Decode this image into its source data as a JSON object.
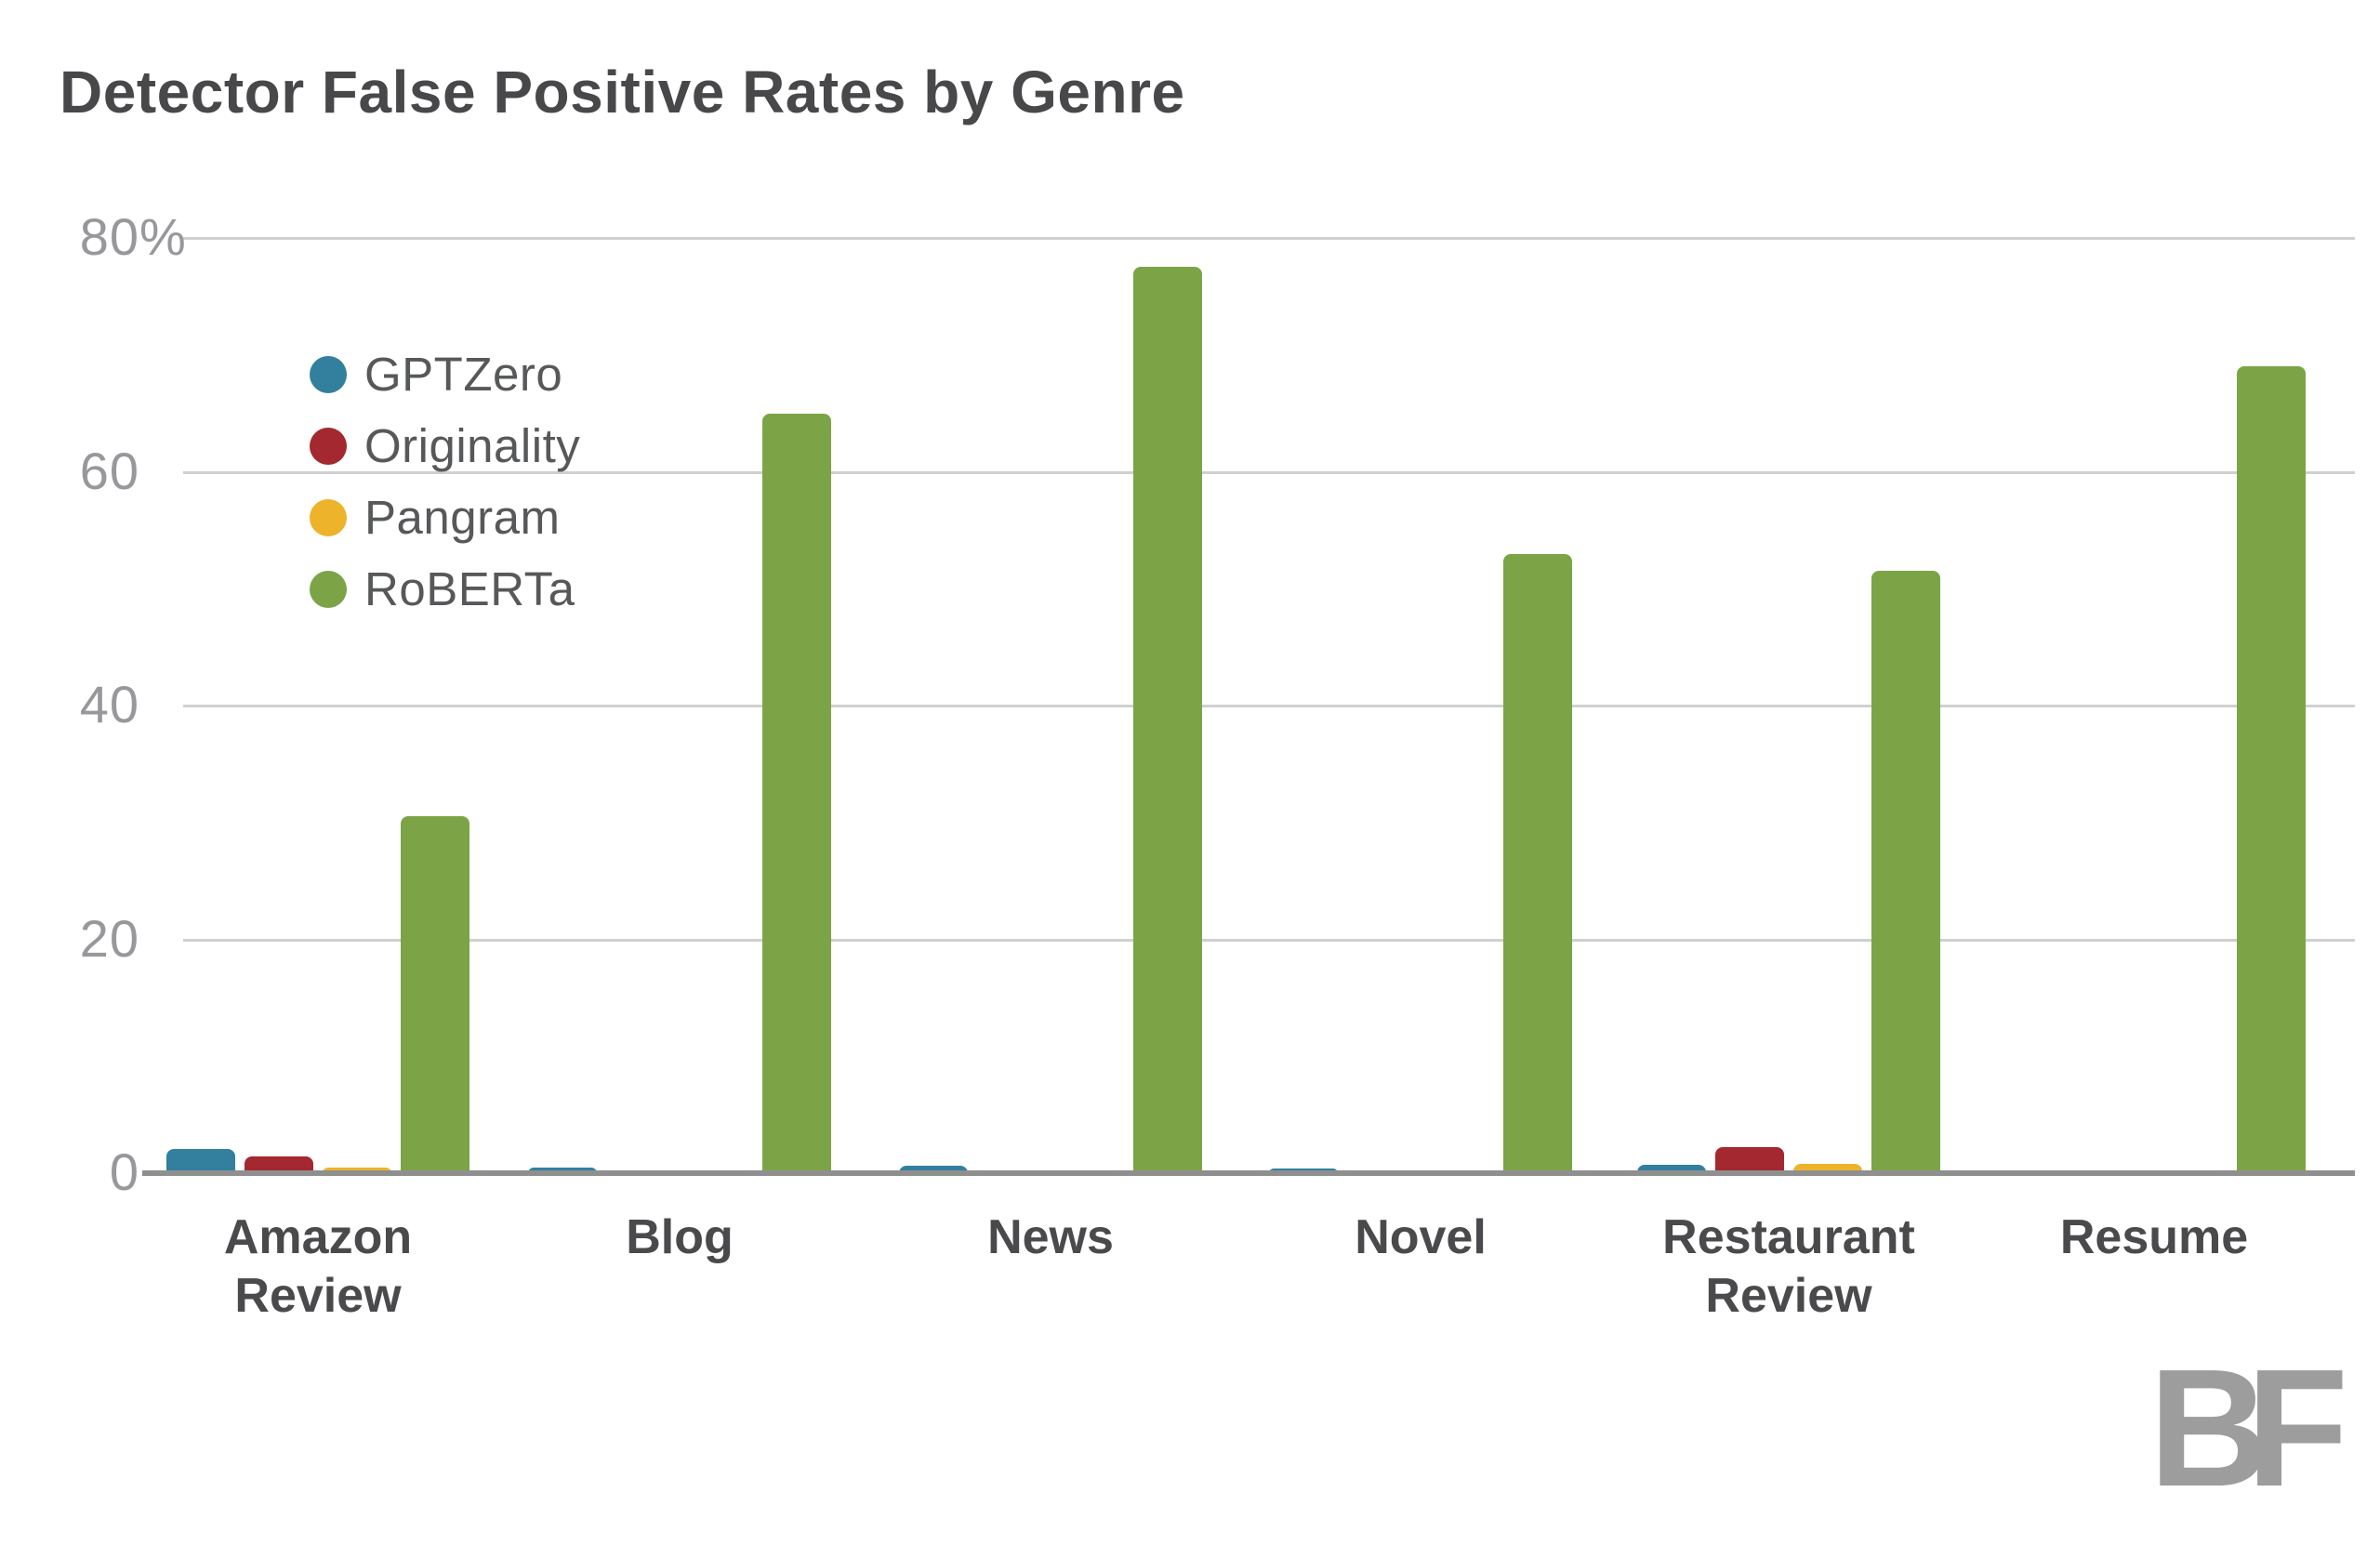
{
  "title": "Detector False Positive Rates by Genre",
  "chart_data": {
    "type": "bar",
    "title": "Detector False Positive Rates by Genre",
    "categories": [
      "Amazon\nReview",
      "Blog",
      "News",
      "Novel",
      "Restaurant\nReview",
      "Resume"
    ],
    "series": [
      {
        "name": "GPTZero",
        "color": "#32809e",
        "values": [
          2.1,
          0.5,
          0.65,
          0.4,
          0.7,
          0
        ]
      },
      {
        "name": "Originality",
        "color": "#a4282f",
        "values": [
          1.4,
          0,
          0,
          0,
          2.2,
          0
        ]
      },
      {
        "name": "Pangram",
        "color": "#edb32b",
        "values": [
          0.5,
          0,
          0,
          0,
          0.8,
          0
        ]
      },
      {
        "name": "RoBERTa",
        "color": "#7ca446",
        "values": [
          30.5,
          65,
          77.5,
          53,
          51.5,
          69
        ]
      }
    ],
    "xlabel": "",
    "ylabel": "",
    "ylim": [
      0,
      80
    ],
    "yticks": [
      {
        "value": 80,
        "label": "80",
        "suffix": "%"
      },
      {
        "value": 60,
        "label": "60",
        "suffix": ""
      },
      {
        "value": 40,
        "label": "40",
        "suffix": ""
      },
      {
        "value": 20,
        "label": "20",
        "suffix": ""
      },
      {
        "value": 0,
        "label": "0",
        "suffix": ""
      }
    ],
    "grid": "horizontal",
    "legend_position": "upper-left-inside"
  },
  "colors": {
    "title_text": "#48484a",
    "axis_tick_text": "#97989b",
    "category_text": "#4a4a4c",
    "gridline": "#cfd0d0",
    "baseline": "#8f8f8f",
    "logo_gray": "#9d9d9d"
  },
  "logo": {
    "text": "BF"
  }
}
